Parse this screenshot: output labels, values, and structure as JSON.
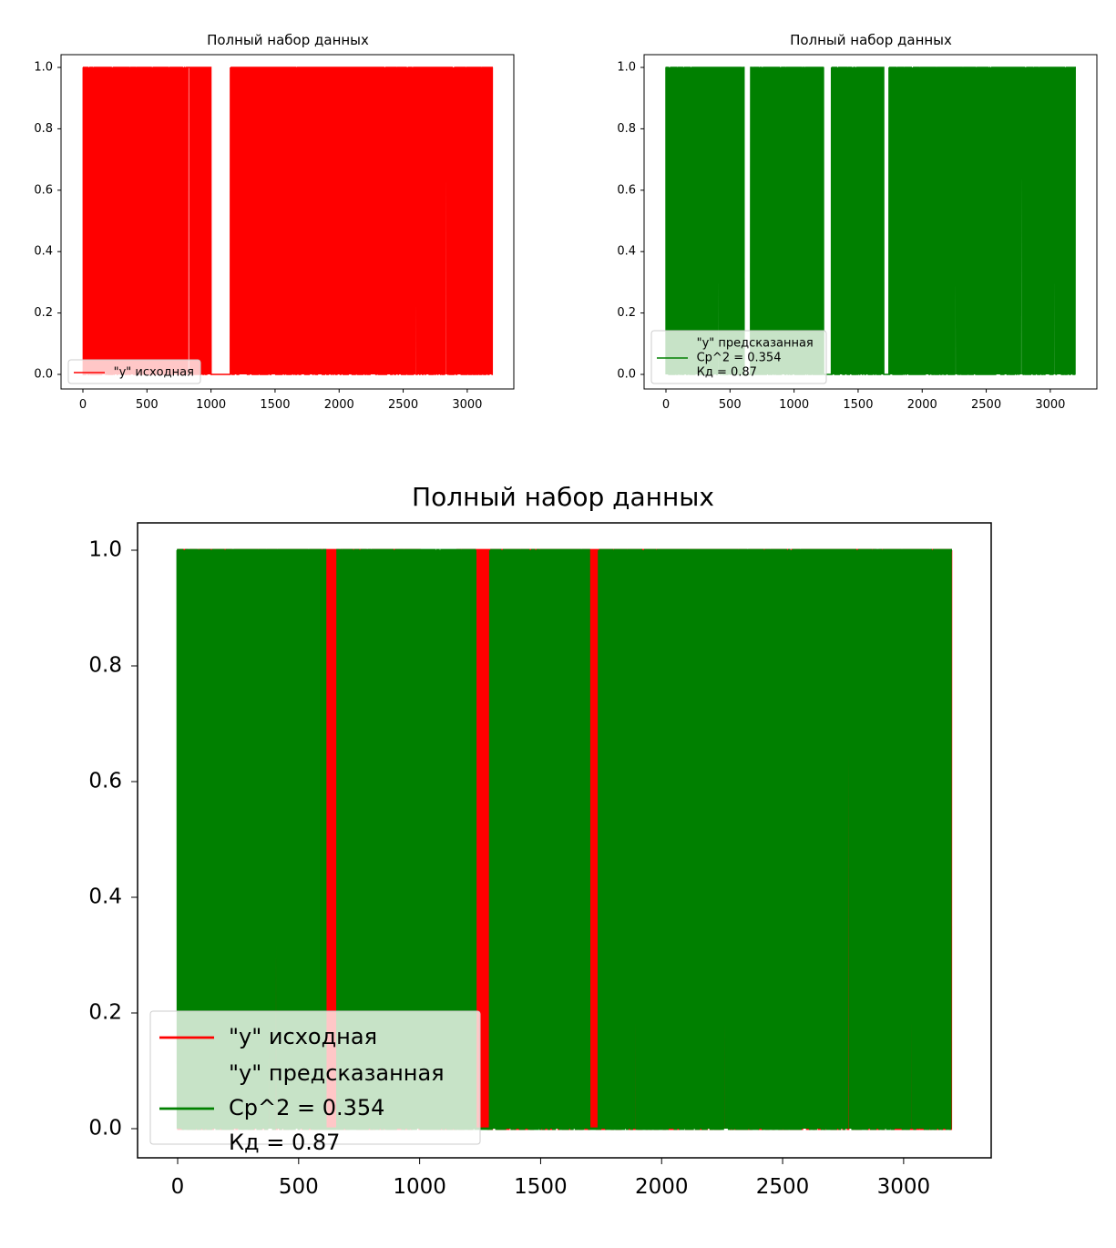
{
  "chart_data": [
    {
      "type": "line",
      "title": "Полный набор данных",
      "xlim": [
        0,
        3200
      ],
      "ylim": [
        0.0,
        1.0
      ],
      "xticks": [
        "0",
        "500",
        "1000",
        "1500",
        "2000",
        "2500",
        "3000"
      ],
      "yticks": [
        "0.0",
        "0.2",
        "0.4",
        "0.6",
        "0.8",
        "1.0"
      ],
      "grid": false,
      "legend_position": "lower-left",
      "series": [
        {
          "name": "\"у\" исходная",
          "color": "#ff0000",
          "values": "binary 0/1 sequence, 3200 points"
        }
      ],
      "legend": [
        {
          "lines": [
            "\"у\" исходная"
          ],
          "color": "#ff0000"
        }
      ]
    },
    {
      "type": "line",
      "title": "Полный набор данных",
      "xlim": [
        0,
        3200
      ],
      "ylim": [
        0.0,
        1.0
      ],
      "xticks": [
        "0",
        "500",
        "1000",
        "1500",
        "2000",
        "2500",
        "3000"
      ],
      "yticks": [
        "0.0",
        "0.2",
        "0.4",
        "0.6",
        "0.8",
        "1.0"
      ],
      "grid": false,
      "legend_position": "lower-left",
      "series": [
        {
          "name": "\"у\" предсказанная",
          "color": "#008000",
          "values": "binary 0/1 sequence, 3200 points"
        }
      ],
      "legend": [
        {
          "lines": [
            "\"у\" предсказанная",
            "Ср^2 = 0.354",
            "Кд = 0.87"
          ],
          "color": "#008000"
        }
      ]
    },
    {
      "type": "line",
      "title": "Полный набор данных",
      "xlim": [
        0,
        3200
      ],
      "ylim": [
        0.0,
        1.0
      ],
      "xticks": [
        "0",
        "500",
        "1000",
        "1500",
        "2000",
        "2500",
        "3000"
      ],
      "yticks": [
        "0.0",
        "0.2",
        "0.4",
        "0.6",
        "0.8",
        "1.0"
      ],
      "grid": false,
      "legend_position": "lower-left",
      "series": [
        {
          "name": "\"у\" исходная",
          "color": "#ff0000",
          "values": "binary 0/1 sequence, 3200 points"
        },
        {
          "name": "\"у\" предсказанная",
          "color": "#008000",
          "values": "binary 0/1 sequence, 3200 points"
        }
      ],
      "legend": [
        {
          "lines": [
            "\"у\" исходная"
          ],
          "color": "#ff0000"
        },
        {
          "lines": [
            "\"у\" предсказанная",
            "Ср^2 = 0.354",
            "Кд = 0.87"
          ],
          "color": "#008000"
        }
      ]
    }
  ]
}
